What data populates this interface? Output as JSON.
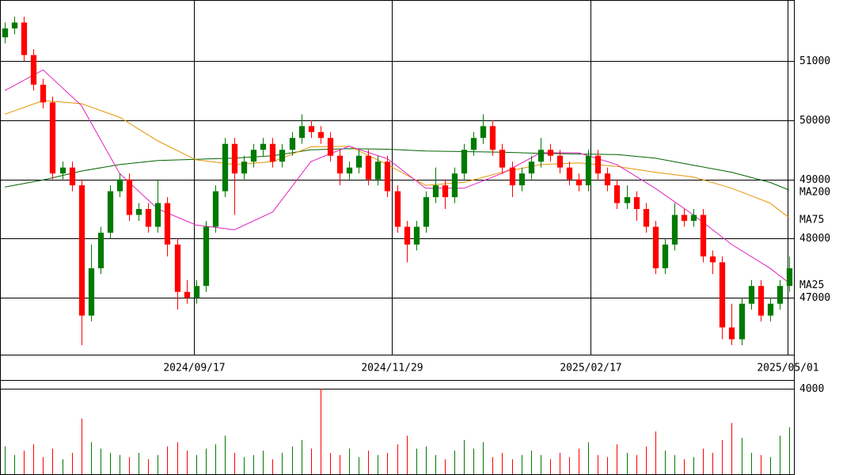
{
  "chart_data": [
    {
      "type": "candlestick",
      "up_color": "#007a00",
      "down_color": "#ff0000",
      "xlim": [
        -0.5,
        82.5
      ],
      "ylim": [
        46040,
        52030
      ],
      "yticks": [
        47000,
        48000,
        49000,
        50000,
        51000
      ],
      "xticks": [
        {
          "value": 19.8,
          "label": "2024/09/17"
        },
        {
          "value": 40.5,
          "label": "2024/11/29"
        },
        {
          "value": 61.2,
          "label": "2025/02/17"
        },
        {
          "value": 81.8,
          "label": "2025/05/01"
        }
      ],
      "grid": true,
      "open": [
        51400,
        51550,
        51650,
        51100,
        50600,
        50300,
        49100,
        49200,
        48900,
        46700,
        47500,
        48100,
        48800,
        49000,
        48400,
        48500,
        48200,
        48600,
        47900,
        47100,
        47000,
        47200,
        48200,
        48800,
        49600,
        49100,
        49300,
        49500,
        49600,
        49300,
        49500,
        49700,
        49900,
        49800,
        49700,
        49400,
        49100,
        49200,
        49400,
        49000,
        49300,
        48800,
        48200,
        47900,
        48200,
        48700,
        48900,
        48700,
        49100,
        49500,
        49700,
        49900,
        49500,
        49200,
        48900,
        49100,
        49300,
        49500,
        49400,
        49200,
        49000,
        48900,
        49400,
        49100,
        48900,
        48600,
        48700,
        48500,
        48200,
        47500,
        47900,
        48400,
        48300,
        48400,
        47700,
        47600,
        46500,
        46300,
        46900,
        47200,
        46700,
        46900,
        47200
      ],
      "high": [
        51650,
        51750,
        51750,
        51200,
        50700,
        50400,
        49300,
        49300,
        49000,
        47900,
        48200,
        48900,
        49100,
        49100,
        48600,
        48600,
        49000,
        48700,
        48000,
        47300,
        47300,
        48300,
        48900,
        49700,
        49700,
        49400,
        49600,
        49700,
        49700,
        49600,
        49800,
        50100,
        50000,
        49900,
        49800,
        49500,
        49300,
        49500,
        49500,
        49400,
        49400,
        48900,
        48300,
        48300,
        48800,
        49200,
        49000,
        49200,
        49600,
        49800,
        50100,
        50000,
        49600,
        49300,
        49200,
        49400,
        49700,
        49600,
        49500,
        49300,
        49100,
        49500,
        49500,
        49200,
        49000,
        48900,
        48800,
        48600,
        48300,
        48000,
        48600,
        48500,
        48500,
        48500,
        47800,
        47700,
        46900,
        47000,
        47300,
        47300,
        47000,
        47300,
        47700
      ],
      "low": [
        51300,
        51450,
        51000,
        50500,
        50200,
        49000,
        49000,
        48800,
        46200,
        46600,
        47400,
        48000,
        48700,
        48300,
        48300,
        48100,
        48100,
        47700,
        46800,
        46900,
        46900,
        47100,
        48100,
        48700,
        48400,
        49000,
        49200,
        49400,
        49200,
        49200,
        49400,
        49600,
        49700,
        49600,
        49300,
        48900,
        49000,
        49100,
        48900,
        48900,
        48700,
        48100,
        47600,
        47800,
        48100,
        48600,
        48500,
        48600,
        49000,
        49400,
        49600,
        49400,
        49100,
        48700,
        48800,
        49000,
        49200,
        49300,
        49100,
        48900,
        48800,
        48800,
        49000,
        48800,
        48500,
        48500,
        48300,
        48100,
        47400,
        47400,
        47800,
        48200,
        48200,
        47600,
        47400,
        46300,
        46200,
        46200,
        46800,
        46600,
        46600,
        46800,
        47100
      ],
      "close": [
        51550,
        51650,
        51100,
        50600,
        50300,
        49100,
        49200,
        48900,
        46700,
        47500,
        48100,
        48800,
        49000,
        48400,
        48500,
        48200,
        48600,
        47900,
        47100,
        47000,
        47200,
        48200,
        48800,
        49600,
        49100,
        49300,
        49500,
        49600,
        49300,
        49500,
        49700,
        49900,
        49800,
        49700,
        49400,
        49100,
        49200,
        49400,
        49000,
        49300,
        48800,
        48200,
        47900,
        48200,
        48700,
        48900,
        48700,
        49100,
        49500,
        49700,
        49900,
        49500,
        49200,
        48900,
        49100,
        49300,
        49500,
        49400,
        49200,
        49000,
        48900,
        49400,
        49100,
        48900,
        48600,
        48700,
        48500,
        48200,
        47500,
        47900,
        48400,
        48300,
        48400,
        47700,
        47600,
        46500,
        46300,
        46900,
        47200,
        46700,
        46900,
        47200,
        47500
      ],
      "series": [
        {
          "name": "MA200",
          "color": "#006400",
          "x": [
            0,
            4,
            8,
            12,
            16,
            20,
            24,
            28,
            32,
            36,
            40,
            44,
            48,
            52,
            56,
            60,
            64,
            68,
            72,
            76,
            80,
            82
          ],
          "values": [
            48870,
            48990,
            49140,
            49250,
            49320,
            49340,
            49360,
            49400,
            49500,
            49520,
            49510,
            49480,
            49470,
            49460,
            49440,
            49430,
            49420,
            49360,
            49240,
            49120,
            48950,
            48820
          ]
        },
        {
          "name": "MA75",
          "color": "#e69500",
          "x": [
            0,
            4,
            8,
            12,
            16,
            20,
            24,
            28,
            32,
            36,
            40,
            44,
            48,
            52,
            56,
            60,
            64,
            68,
            72,
            76,
            80,
            82
          ],
          "values": [
            50100,
            50330,
            50280,
            50050,
            49650,
            49330,
            49250,
            49300,
            49550,
            49560,
            49250,
            48900,
            48950,
            49120,
            49250,
            49280,
            49220,
            49120,
            49040,
            48850,
            48600,
            48350
          ]
        },
        {
          "name": "MA25",
          "color": "#e020c0",
          "x": [
            0,
            4,
            8,
            12,
            16,
            20,
            24,
            28,
            32,
            36,
            40,
            44,
            48,
            52,
            56,
            60,
            64,
            68,
            72,
            76,
            80,
            82
          ],
          "values": [
            50500,
            50850,
            50250,
            49100,
            48500,
            48230,
            48150,
            48450,
            49300,
            49560,
            49350,
            48850,
            48850,
            49100,
            49450,
            49450,
            49250,
            48850,
            48400,
            47900,
            47500,
            47250
          ]
        }
      ]
    },
    {
      "type": "bar",
      "xlim": [
        -0.5,
        82.5
      ],
      "ylim": [
        0,
        4370
      ],
      "yticks": [
        4000
      ],
      "values": [
        1300,
        900,
        1100,
        1400,
        800,
        1200,
        700,
        1000,
        2600,
        1500,
        1200,
        1000,
        900,
        800,
        1000,
        700,
        900,
        1300,
        1500,
        1100,
        900,
        1200,
        1400,
        1800,
        1000,
        800,
        900,
        1100,
        700,
        1000,
        1300,
        1600,
        1200,
        4000,
        1000,
        900,
        1200,
        800,
        1100,
        900,
        1000,
        1400,
        1800,
        1200,
        1300,
        900,
        700,
        1100,
        1600,
        1200,
        1500,
        800,
        1000,
        700,
        900,
        1100,
        900,
        700,
        1000,
        800,
        1200,
        1500,
        900,
        800,
        1400,
        1000,
        900,
        1300,
        2000,
        1100,
        900,
        700,
        800,
        1200,
        1000,
        1600,
        2400,
        1700,
        1000,
        900,
        800,
        1800,
        2200
      ]
    }
  ]
}
